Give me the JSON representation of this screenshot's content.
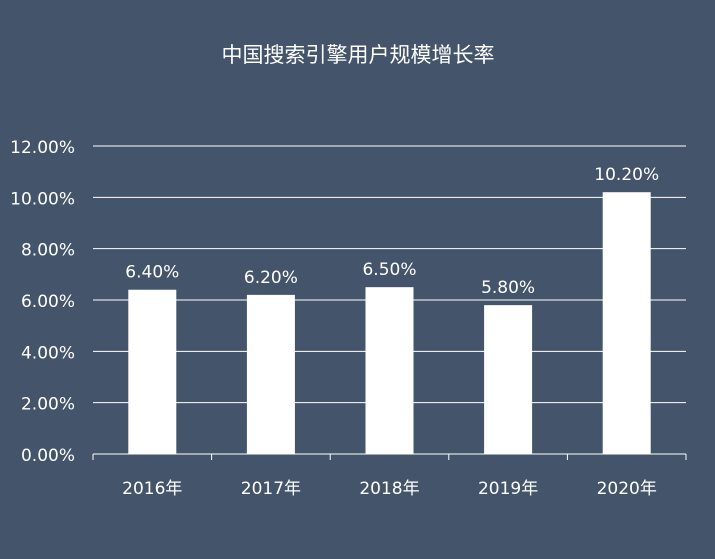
{
  "colors": {
    "background": "#44546a",
    "bar": "#ffffff",
    "text": "#ffffff",
    "grid": "#ffffff"
  },
  "chart_data": {
    "type": "bar",
    "title": "中国搜索引擎用户规模增长率",
    "categories": [
      "2016年",
      "2017年",
      "2018年",
      "2019年",
      "2020年"
    ],
    "values": [
      6.4,
      6.2,
      6.5,
      5.8,
      10.2
    ],
    "data_labels": [
      "6.40%",
      "6.20%",
      "6.50%",
      "5.80%",
      "10.20%"
    ],
    "y_ticks": [
      "0.00%",
      "2.00%",
      "4.00%",
      "6.00%",
      "8.00%",
      "10.00%",
      "12.00%"
    ],
    "y_tick_values": [
      0,
      2,
      4,
      6,
      8,
      10,
      12
    ],
    "ylim": [
      0,
      12
    ],
    "grid": true,
    "legend": "none"
  }
}
